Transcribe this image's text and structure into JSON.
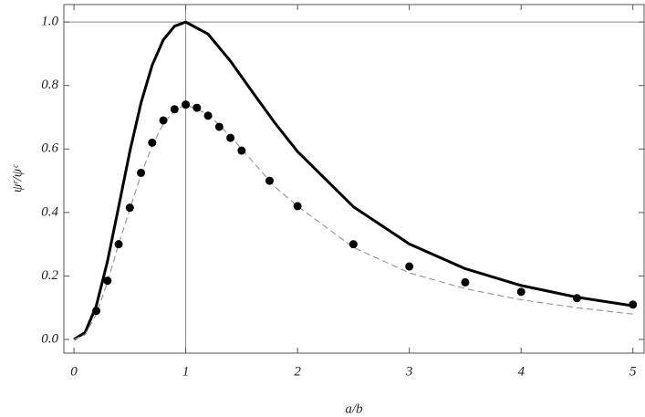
{
  "chart_data": {
    "type": "line",
    "x_label": "a/b",
    "y_label": "ψʳ/ψᶜ",
    "xlim": [
      -0.09,
      5.1
    ],
    "ylim": [
      -0.043,
      1.055
    ],
    "xticks": [
      0,
      1,
      2,
      3,
      4,
      5
    ],
    "yticks": [
      {
        "value": 0,
        "label": "0.0"
      },
      0.2,
      0.4,
      0.6,
      0.8,
      {
        "value": 1,
        "label": "1.0"
      }
    ],
    "vlines": [
      1
    ],
    "hlines": [
      1
    ],
    "series": [
      {
        "type": "line",
        "line_style": "solid",
        "color": "#000000",
        "x": [
          0,
          0.1,
          0.2,
          0.3,
          0.4,
          0.5,
          0.6,
          0.7,
          0.8,
          0.9,
          1,
          1.2,
          1.4,
          1.6,
          1.8,
          2,
          2.5,
          3,
          3.5,
          4,
          4.5,
          5
        ],
        "values": [
          0,
          0.022,
          0.106,
          0.246,
          0.418,
          0.592,
          0.745,
          0.864,
          0.944,
          0.987,
          1,
          0.962,
          0.877,
          0.778,
          0.681,
          0.592,
          0.418,
          0.301,
          0.223,
          0.17,
          0.133,
          0.106
        ]
      },
      {
        "type": "line",
        "line_style": "dashed",
        "color": "#999999",
        "x": [
          0,
          0.1,
          0.2,
          0.3,
          0.4,
          0.5,
          0.6,
          0.7,
          0.8,
          0.9,
          1,
          1.2,
          1.4,
          1.6,
          1.8,
          2,
          2.5,
          3,
          3.5,
          4,
          4.5,
          5
        ],
        "values": [
          0,
          0.015,
          0.08,
          0.18,
          0.3,
          0.41,
          0.52,
          0.61,
          0.68,
          0.72,
          0.74,
          0.71,
          0.64,
          0.56,
          0.48,
          0.42,
          0.29,
          0.21,
          0.16,
          0.125,
          0.1,
          0.08
        ]
      },
      {
        "type": "scatter",
        "color": "#000000",
        "x": [
          0.2,
          0.3,
          0.4,
          0.5,
          0.6,
          0.7,
          0.8,
          0.9,
          1,
          1.1,
          1.2,
          1.3,
          1.4,
          1.5,
          1.75,
          2,
          2.5,
          3,
          3.5,
          4,
          4.5,
          5
        ],
        "values": [
          0.09,
          0.185,
          0.3,
          0.415,
          0.525,
          0.62,
          0.69,
          0.725,
          0.74,
          0.73,
          0.705,
          0.67,
          0.635,
          0.595,
          0.5,
          0.42,
          0.3,
          0.23,
          0.18,
          0.15,
          0.13,
          0.11
        ]
      }
    ]
  }
}
